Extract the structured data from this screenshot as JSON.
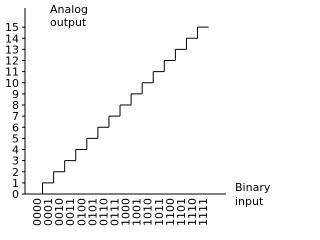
{
  "chart_data": {
    "type": "step",
    "ylabel": [
      "Analog",
      "output"
    ],
    "xlabel": [
      "Binary",
      "input"
    ],
    "categories": [
      "0000",
      "0001",
      "0010",
      "0011",
      "0100",
      "0101",
      "0110",
      "0111",
      "1000",
      "1001",
      "1010",
      "1011",
      "1100",
      "1101",
      "1110",
      "1111"
    ],
    "values": [
      0,
      1,
      2,
      3,
      4,
      5,
      6,
      7,
      8,
      9,
      10,
      11,
      12,
      13,
      14,
      15
    ],
    "color": "#000000",
    "ylim": [
      0,
      16
    ],
    "yticks": [
      0,
      1,
      2,
      3,
      4,
      5,
      6,
      7,
      8,
      9,
      10,
      11,
      12,
      13,
      14,
      15
    ]
  }
}
